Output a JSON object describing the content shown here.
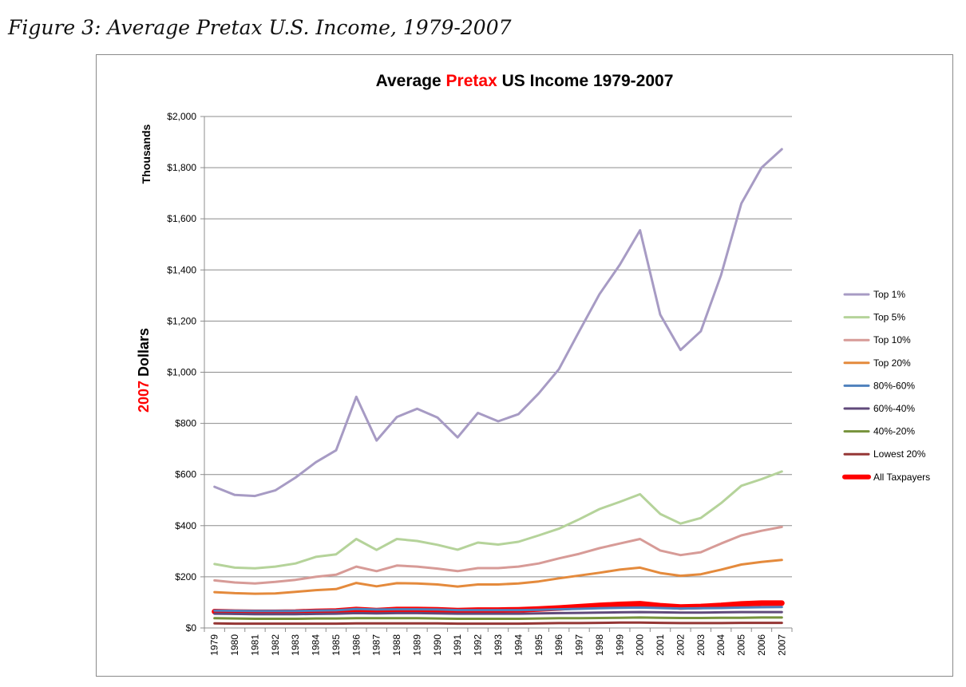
{
  "caption": "Figure 3: Average Pretax U.S. Income, 1979-2007",
  "chart_data": {
    "type": "line",
    "title_parts": [
      {
        "text": "Average ",
        "color": "#000000"
      },
      {
        "text": "Pretax",
        "color": "#ff0000"
      },
      {
        "text": " US Income  1979-2007",
        "color": "#000000"
      }
    ],
    "ylabel_top": "Thousands",
    "ylabel_parts": [
      {
        "text": "2007",
        "color": "#ff0000"
      },
      {
        "text": " Dollars",
        "color": "#000000"
      }
    ],
    "ylim": [
      0,
      2000
    ],
    "yticks": [
      0,
      200,
      400,
      600,
      800,
      1000,
      1200,
      1400,
      1600,
      1800,
      2000
    ],
    "ytick_labels": [
      "$0",
      "$200",
      "$400",
      "$600",
      "$800",
      "$1,000",
      "$1,200",
      "$1,400",
      "$1,600",
      "$1,800",
      "$2,000"
    ],
    "grid": true,
    "legend_position": "right",
    "x": [
      "1979",
      "1980",
      "1981",
      "1982",
      "1983",
      "1984",
      "1985",
      "1986",
      "1987",
      "1988",
      "1989",
      "1990",
      "1991",
      "1992",
      "1993",
      "1994",
      "1995",
      "1996",
      "1997",
      "1998",
      "1999",
      "2000",
      "2001",
      "2002",
      "2003",
      "2004",
      "2005",
      "2006",
      "2007"
    ],
    "series": [
      {
        "name": "Top 1%",
        "color": "#a79bc4",
        "values": [
          552,
          520,
          516,
          538,
          588,
          648,
          695,
          904,
          733,
          825,
          857,
          823,
          745,
          841,
          808,
          836,
          917,
          1012,
          1160,
          1305,
          1420,
          1555,
          1225,
          1087,
          1160,
          1380,
          1660,
          1800,
          1872
        ]
      },
      {
        "name": "Top 5%",
        "color": "#b5d39a",
        "values": [
          250,
          236,
          233,
          240,
          252,
          278,
          288,
          348,
          305,
          348,
          340,
          325,
          306,
          334,
          326,
          337,
          362,
          388,
          425,
          465,
          493,
          523,
          446,
          408,
          430,
          488,
          556,
          582,
          612
        ]
      },
      {
        "name": "Top 10%",
        "color": "#d79b97",
        "values": [
          186,
          178,
          174,
          180,
          188,
          200,
          208,
          240,
          222,
          244,
          240,
          232,
          222,
          234,
          234,
          240,
          252,
          272,
          290,
          312,
          330,
          348,
          303,
          285,
          296,
          330,
          362,
          380,
          395
        ]
      },
      {
        "name": "Top 20%",
        "color": "#e48a3c",
        "values": [
          140,
          136,
          134,
          135,
          141,
          148,
          152,
          176,
          163,
          175,
          174,
          170,
          162,
          170,
          170,
          174,
          182,
          194,
          205,
          216,
          228,
          236,
          215,
          204,
          210,
          228,
          248,
          258,
          266
        ]
      },
      {
        "name": "80%-60%",
        "color": "#4f81bd",
        "values": [
          68,
          67,
          66,
          66,
          66,
          68,
          69,
          74,
          72,
          73,
          73,
          72,
          70,
          70,
          70,
          70,
          71,
          73,
          75,
          77,
          79,
          80,
          78,
          76,
          77,
          78,
          80,
          81,
          82
        ]
      },
      {
        "name": "60%-40%",
        "color": "#604a7b",
        "values": [
          56,
          55,
          54,
          54,
          54,
          55,
          56,
          58,
          57,
          58,
          58,
          57,
          56,
          56,
          56,
          56,
          57,
          58,
          59,
          60,
          61,
          62,
          61,
          60,
          60,
          61,
          62,
          62,
          62
        ]
      },
      {
        "name": "40%-20%",
        "color": "#77933c",
        "values": [
          38,
          37,
          36,
          36,
          36,
          37,
          37,
          38,
          38,
          38,
          38,
          37,
          36,
          36,
          36,
          36,
          37,
          38,
          38,
          39,
          40,
          41,
          40,
          39,
          39,
          40,
          40,
          41,
          41
        ]
      },
      {
        "name": "Lowest 20%",
        "color": "#953735",
        "values": [
          18,
          17,
          17,
          17,
          17,
          17,
          17,
          18,
          18,
          18,
          18,
          18,
          17,
          17,
          17,
          17,
          18,
          19,
          19,
          20,
          21,
          21,
          20,
          19,
          19,
          19,
          20,
          20,
          20
        ]
      },
      {
        "name": "All Taxpayers",
        "color": "#ff0000",
        "values": [
          64,
          62,
          61,
          61,
          62,
          65,
          66,
          72,
          68,
          72,
          72,
          71,
          68,
          70,
          70,
          71,
          74,
          78,
          83,
          88,
          92,
          95,
          87,
          82,
          84,
          88,
          94,
          97,
          97
        ]
      }
    ]
  }
}
